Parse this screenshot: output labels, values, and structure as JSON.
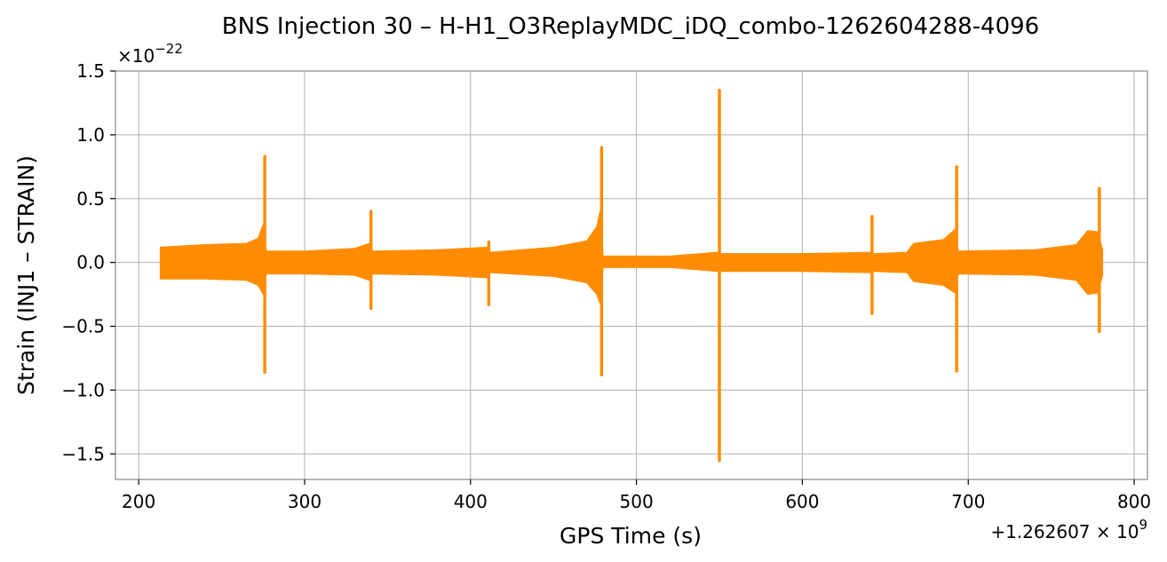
{
  "chart_data": {
    "type": "line",
    "title": "BNS Injection 30 – H-H1_O3ReplayMDC_iDQ_combo-1262604288-4096",
    "xlabel": "GPS Time (s)",
    "ylabel": "Strain (INJ1 – STRAIN)",
    "x_offset_label": "+1.262607 × 10",
    "x_offset_exponent": "9",
    "y_scale_label": "×10",
    "y_scale_exponent": "−22",
    "xlim": [
      186,
      1808
    ],
    "ylim": [
      -1.7,
      1.5
    ],
    "x_ticks": [
      200,
      300,
      400,
      500,
      600,
      700,
      800
    ],
    "x_tick_labels": [
      "200",
      "300",
      "400",
      "500",
      "600",
      "700",
      "800"
    ],
    "y_ticks": [
      1.5,
      1.0,
      0.5,
      0.0,
      -0.5,
      -1.0,
      -1.5
    ],
    "y_tick_labels": [
      "1.5",
      "1.0",
      "0.5",
      "0.0",
      "−0.5",
      "−1.0",
      "−1.5"
    ],
    "grid": true,
    "color": "#ff8c00",
    "data_range_x": [
      213,
      781
    ],
    "envelope": [
      {
        "x": 213,
        "top": 0.12,
        "bottom": -0.13
      },
      {
        "x": 240,
        "top": 0.14,
        "bottom": -0.13
      },
      {
        "x": 265,
        "top": 0.15,
        "bottom": -0.14
      },
      {
        "x": 272,
        "top": 0.19,
        "bottom": -0.18
      },
      {
        "x": 275,
        "top": 0.3,
        "bottom": -0.25
      },
      {
        "x": 277,
        "top": 0.09,
        "bottom": -0.09
      },
      {
        "x": 300,
        "top": 0.09,
        "bottom": -0.09
      },
      {
        "x": 330,
        "top": 0.11,
        "bottom": -0.1
      },
      {
        "x": 339,
        "top": 0.15,
        "bottom": -0.14
      },
      {
        "x": 341,
        "top": 0.09,
        "bottom": -0.09
      },
      {
        "x": 380,
        "top": 0.1,
        "bottom": -0.1
      },
      {
        "x": 410,
        "top": 0.12,
        "bottom": -0.12
      },
      {
        "x": 412,
        "top": 0.08,
        "bottom": -0.08
      },
      {
        "x": 450,
        "top": 0.12,
        "bottom": -0.11
      },
      {
        "x": 470,
        "top": 0.17,
        "bottom": -0.16
      },
      {
        "x": 476,
        "top": 0.28,
        "bottom": -0.25
      },
      {
        "x": 478,
        "top": 0.4,
        "bottom": -0.32
      },
      {
        "x": 480,
        "top": 0.05,
        "bottom": -0.04
      },
      {
        "x": 520,
        "top": 0.05,
        "bottom": -0.04
      },
      {
        "x": 549,
        "top": 0.08,
        "bottom": -0.07
      },
      {
        "x": 551,
        "top": 0.07,
        "bottom": -0.07
      },
      {
        "x": 600,
        "top": 0.07,
        "bottom": -0.07
      },
      {
        "x": 641,
        "top": 0.08,
        "bottom": -0.08
      },
      {
        "x": 643,
        "top": 0.07,
        "bottom": -0.07
      },
      {
        "x": 663,
        "top": 0.08,
        "bottom": -0.08
      },
      {
        "x": 667,
        "top": 0.15,
        "bottom": -0.15
      },
      {
        "x": 685,
        "top": 0.18,
        "bottom": -0.18
      },
      {
        "x": 692,
        "top": 0.26,
        "bottom": -0.24
      },
      {
        "x": 694,
        "top": 0.09,
        "bottom": -0.09
      },
      {
        "x": 740,
        "top": 0.1,
        "bottom": -0.1
      },
      {
        "x": 765,
        "top": 0.14,
        "bottom": -0.14
      },
      {
        "x": 772,
        "top": 0.25,
        "bottom": -0.25
      },
      {
        "x": 778,
        "top": 0.24,
        "bottom": -0.24
      },
      {
        "x": 781,
        "top": 0.1,
        "bottom": -0.1
      }
    ],
    "spikes": [
      {
        "x": 276,
        "max": 0.83,
        "min": -0.86
      },
      {
        "x": 340,
        "max": 0.4,
        "min": -0.36
      },
      {
        "x": 411,
        "max": 0.16,
        "min": -0.33
      },
      {
        "x": 479,
        "max": 0.9,
        "min": -0.88
      },
      {
        "x": 550,
        "max": 1.35,
        "min": -1.55
      },
      {
        "x": 642,
        "max": 0.36,
        "min": -0.4
      },
      {
        "x": 693,
        "max": 0.75,
        "min": -0.85
      },
      {
        "x": 779,
        "max": 0.58,
        "min": -0.54
      }
    ]
  }
}
